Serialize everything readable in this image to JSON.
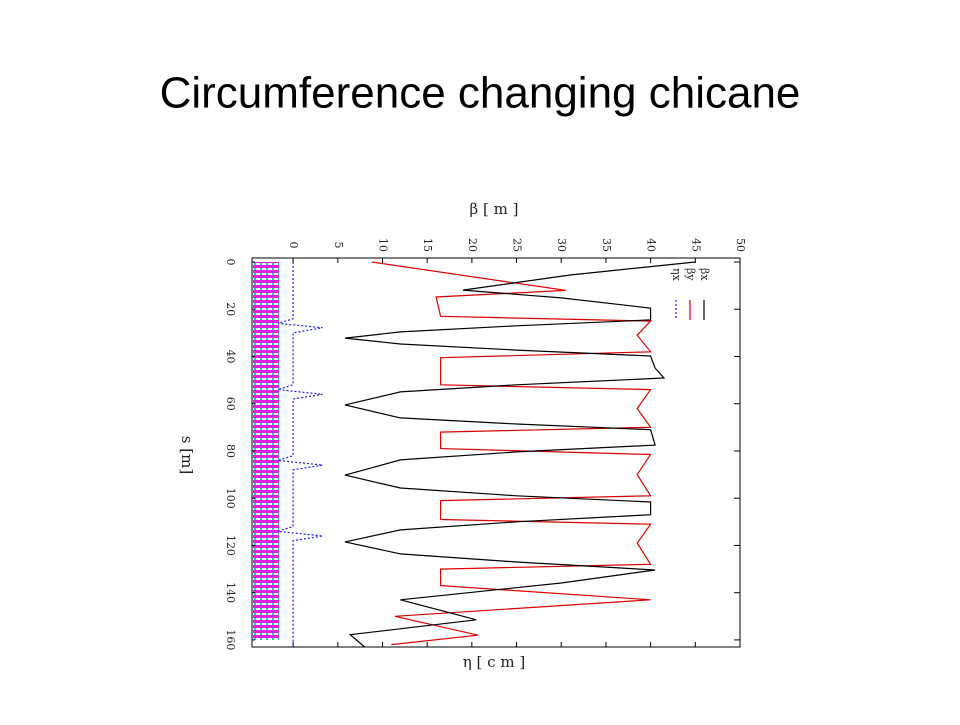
{
  "title": "Circumference changing chicane",
  "chart_data": {
    "type": "line",
    "orientation": "vertical-x",
    "xlabel": "s [m]",
    "ylabel": "β [ m ]",
    "y2label": "η [ c m ]",
    "xlim": [
      -1.7,
      163
    ],
    "xticks": [
      0,
      20,
      40,
      60,
      80,
      100,
      120,
      140,
      160
    ],
    "ylim": [
      -4.6,
      50
    ],
    "yticks": [
      0,
      5,
      10,
      15,
      20,
      25,
      30,
      35,
      40,
      45,
      50
    ],
    "series": [
      {
        "name": "ηx",
        "color": "#1a1aff",
        "dash": true,
        "x": [
          0,
          24,
          26,
          27.8,
          30,
          52,
          54,
          56,
          58,
          82,
          84,
          86,
          88,
          112,
          114,
          116,
          118,
          163
        ],
        "values": [
          0,
          0,
          -1.7,
          3.3,
          0,
          0,
          -1.7,
          3.3,
          0,
          0,
          -1.7,
          3.3,
          0,
          0,
          -1.7,
          3.3,
          0,
          0
        ]
      },
      {
        "name": "βy",
        "color": "#dd0000",
        "dash": false,
        "x": [
          0,
          12,
          14.8,
          23,
          25,
          31,
          38,
          40.5,
          52,
          54,
          62,
          70,
          72,
          79,
          81.5,
          90,
          99,
          101,
          109,
          111,
          119,
          128,
          130,
          137,
          143,
          150,
          158,
          162
        ],
        "values": [
          8.8,
          30.5,
          16,
          16.5,
          40,
          38.5,
          40,
          16.5,
          16.5,
          40,
          38.5,
          40,
          16.5,
          16.5,
          40,
          38.5,
          40,
          16.5,
          16.5,
          40,
          38.5,
          40,
          16.5,
          16.5,
          40,
          11.4,
          20.7,
          11
        ]
      },
      {
        "name": "βx",
        "color": "#000000",
        "dash": false,
        "x": [
          0,
          5.5,
          11.9,
          15.2,
          19.5,
          24.5,
          27,
          29.6,
          32.2,
          34.7,
          37.3,
          39.8,
          44.9,
          49.1,
          52,
          55,
          60.5,
          66,
          68.6,
          71,
          77.5,
          80.4,
          83.8,
          90.2,
          95.7,
          99,
          101.6,
          107,
          110,
          113.4,
          118.5,
          123.6,
          127,
          130.4,
          135.9,
          143,
          148,
          151.5,
          157.8,
          163
        ],
        "values": [
          45,
          31,
          19,
          30,
          40,
          40,
          25,
          12,
          5.8,
          12,
          25,
          40,
          40.5,
          41.5,
          25,
          12,
          5.8,
          12,
          25,
          40,
          40.5,
          25,
          12,
          5.8,
          12,
          25,
          40,
          40,
          25,
          12,
          5.8,
          12,
          25,
          40.5,
          30,
          12,
          17,
          20.5,
          6.4,
          8
        ]
      }
    ]
  }
}
